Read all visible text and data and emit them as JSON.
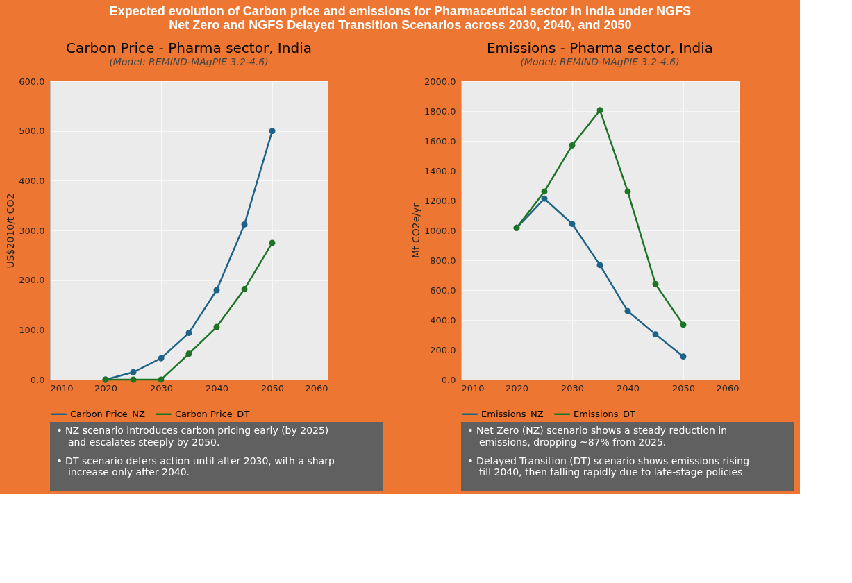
{
  "chart_data": [
    {
      "type": "line",
      "title": "Carbon Price - Pharma sector, India",
      "subtitle": "(Model: REMIND-MAgPIE 3.2-4.6)",
      "ylabel": "US$2010/t CO2",
      "annotations": [
        "Expected evolution of Carbon price and emissions for Pharmaceutical sector in India under NGFS Net Zero and NGFS Delayed Transition Scenarios across 2030, 2040, and 2050",
        "• NZ scenario introduces carbon pricing early (by 2025) and escalates steeply by 2050.",
        "• DT scenario defers action until after 2030, with a sharp increase only after 2040."
      ],
      "x": [
        2020,
        2025,
        2030,
        2035,
        2040,
        2045,
        2050
      ],
      "series": [
        {
          "name": "Carbon Price_NZ",
          "color": "#1f6287",
          "values": [
            0,
            15,
            43,
            94,
            180,
            312,
            500
          ]
        },
        {
          "name": "Carbon Price_DT",
          "color": "#1f7325",
          "values": [
            0,
            0,
            0,
            52,
            106,
            182,
            275
          ]
        }
      ],
      "xlim": [
        2010,
        2060
      ],
      "xticks": [
        2010,
        2020,
        2030,
        2040,
        2050,
        2060
      ],
      "ylim": [
        0,
        600
      ],
      "yticks": [
        {
          "value": 0,
          "label": "0.0"
        },
        {
          "value": 100,
          "label": "100.0"
        },
        {
          "value": 200,
          "label": "200.0"
        },
        {
          "value": 300,
          "label": "300.0"
        },
        {
          "value": 400,
          "label": "400.0"
        },
        {
          "value": 500,
          "label": "500.0"
        },
        {
          "value": 600,
          "label": "600.0"
        }
      ],
      "grid": true,
      "legend": "bottom",
      "marker": "circle",
      "line_style": "solid"
    },
    {
      "type": "line",
      "title": "Emissions - Pharma sector, India",
      "subtitle": "(Model: REMIND-MAgPIE 3.2-4.6)",
      "ylabel": "Mt CO2e/yr",
      "annotations": [
        "• Net Zero (NZ) scenario shows a steady reduction in emissions, dropping ~87% from 2025.",
        "• Delayed Transition (DT) scenario shows emissions rising till 2040, then falling rapidly due to late-stage policies"
      ],
      "x": [
        2020,
        2025,
        2030,
        2035,
        2040,
        2045,
        2050
      ],
      "series": [
        {
          "name": "Emissions_NZ",
          "color": "#1f6287",
          "values": [
            1017,
            1213,
            1044,
            768,
            459,
            304,
            155
          ]
        },
        {
          "name": "Emissions_DT",
          "color": "#1f7325",
          "values": [
            1017,
            1261,
            1570,
            1806,
            1261,
            641,
            368
          ]
        }
      ],
      "xlim": [
        2010,
        2060
      ],
      "xticks": [
        2010,
        2020,
        2030,
        2040,
        2050,
        2060
      ],
      "ylim": [
        0,
        2000
      ],
      "yticks": [
        {
          "value": 0,
          "label": "0.0"
        },
        {
          "value": 200,
          "label": "200.0"
        },
        {
          "value": 400,
          "label": "400.0"
        },
        {
          "value": 600,
          "label": "600.0"
        },
        {
          "value": 800,
          "label": "800.0"
        },
        {
          "value": 1000,
          "label": "1000.0"
        },
        {
          "value": 1200,
          "label": "1200.0"
        },
        {
          "value": 1400,
          "label": "1400.0"
        },
        {
          "value": 1600,
          "label": "1600.0"
        },
        {
          "value": 1800,
          "label": "1800.0"
        },
        {
          "value": 2000,
          "label": "2000.0"
        }
      ],
      "grid": true,
      "legend": "bottom",
      "marker": "circle",
      "line_style": "solid"
    }
  ]
}
